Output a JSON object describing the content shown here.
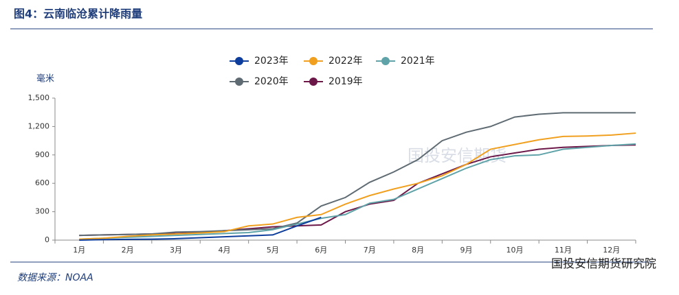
{
  "header": {
    "title": "图4：云南临沧累计降雨量"
  },
  "chart_data": {
    "type": "line",
    "y_label": "毫米",
    "categories": [
      "1月",
      null,
      "2月",
      null,
      "3月",
      null,
      "4月",
      null,
      "5月",
      null,
      "6月",
      null,
      "7月",
      null,
      "8月",
      null,
      "9月",
      null,
      "10月",
      null,
      "11月",
      null,
      "12月",
      null
    ],
    "series": [
      {
        "name": "2023年",
        "color": "#0d3d9c",
        "values": [
          0,
          5,
          8,
          10,
          15,
          25,
          35,
          45,
          55,
          150,
          240,
          null,
          null,
          null,
          null,
          null,
          null,
          null,
          null,
          null,
          null,
          null,
          null,
          null
        ]
      },
      {
        "name": "2022年",
        "color": "#f0a01e",
        "values": [
          10,
          20,
          40,
          55,
          65,
          75,
          90,
          150,
          170,
          240,
          270,
          380,
          470,
          540,
          600,
          680,
          800,
          960,
          1010,
          1060,
          1095,
          1100,
          1110,
          1130
        ]
      },
      {
        "name": "2021年",
        "color": "#5fa3a8",
        "values": [
          10,
          20,
          30,
          40,
          50,
          60,
          70,
          80,
          110,
          170,
          230,
          270,
          390,
          430,
          540,
          650,
          760,
          850,
          890,
          900,
          960,
          980,
          1000,
          1015
        ]
      },
      {
        "name": "2020年",
        "color": "#5f6b72",
        "values": [
          50,
          55,
          60,
          65,
          85,
          90,
          100,
          110,
          120,
          180,
          360,
          450,
          610,
          720,
          850,
          1050,
          1140,
          1200,
          1300,
          1330,
          1345,
          1345,
          1345,
          1345
        ]
      },
      {
        "name": "2019年",
        "color": "#6b1748",
        "values": [
          50,
          55,
          60,
          65,
          70,
          80,
          100,
          120,
          140,
          150,
          160,
          300,
          380,
          420,
          600,
          700,
          800,
          880,
          920,
          960,
          980,
          990,
          1000,
          1005
        ]
      }
    ],
    "ylim": [
      0,
      1500
    ],
    "yticks": [
      0,
      300,
      600,
      900,
      {
        "value": 1200,
        "label": "1,200"
      },
      {
        "value": 1500,
        "label": "1,500"
      }
    ]
  },
  "footer": {
    "source": "数据来源：NOAA",
    "watermark": "国投安信期货",
    "brand": "国投安信期货研究院"
  }
}
